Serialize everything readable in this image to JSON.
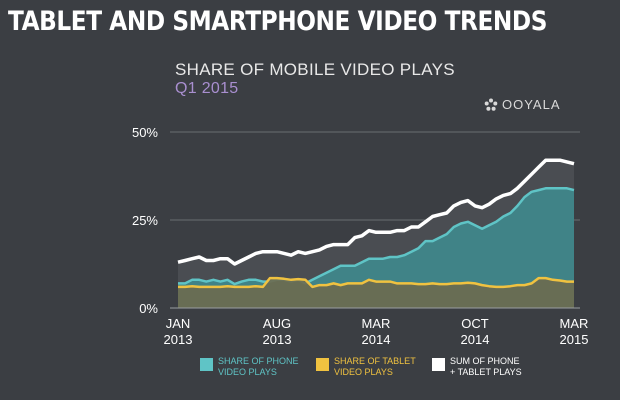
{
  "header": {
    "title": "TABLET AND SMARTPHONE VIDEO TRENDS",
    "subtitle": "SHARE OF MOBILE VIDEO PLAYS",
    "period": "Q1 2015",
    "brand": "OOYALA"
  },
  "colors": {
    "background": "#3b3e43",
    "phone": "#5fc4c6",
    "tablet": "#f0c240",
    "sum": "#ffffff",
    "period_text": "#a98fd0"
  },
  "legend": [
    {
      "label": "SHARE OF PHONE\nVIDEO PLAYS",
      "color": "#5fc4c6",
      "text_color": "#5fc4c6"
    },
    {
      "label": "SHARE OF TABLET\nVIDEO PLAYS",
      "color": "#f0c240",
      "text_color": "#f0c240"
    },
    {
      "label": "SUM OF PHONE\n+ TABLET PLAYS",
      "color": "#ffffff",
      "text_color": "#ffffff"
    }
  ],
  "chart_data": {
    "type": "area",
    "title": "SHARE OF MOBILE VIDEO PLAYS",
    "x_ticks": [
      {
        "index": 0,
        "label": [
          "JAN",
          "2013"
        ]
      },
      {
        "index": 14,
        "label": [
          "AUG",
          "2013"
        ]
      },
      {
        "index": 28,
        "label": [
          "MAR",
          "2014"
        ]
      },
      {
        "index": 42,
        "label": [
          "OCT",
          "2014"
        ]
      },
      {
        "index": 56,
        "label": [
          "MAR",
          "2015"
        ]
      }
    ],
    "y_ticks": [
      {
        "value": 0,
        "label": "0%"
      },
      {
        "value": 25,
        "label": "25%"
      },
      {
        "value": 50,
        "label": "50%"
      }
    ],
    "ylim": [
      0,
      50
    ],
    "x_count": 57,
    "series": [
      {
        "name": "SHARE OF PHONE VIDEO PLAYS",
        "values": [
          7,
          7,
          8,
          8,
          7.5,
          8,
          7.5,
          8,
          6.8,
          7.5,
          8,
          8,
          7.5,
          7.5,
          8,
          8,
          7.5,
          8,
          7,
          8,
          9,
          10,
          11,
          12,
          12,
          12,
          13,
          14,
          14,
          14,
          14.5,
          14.5,
          15,
          16,
          17,
          19,
          19,
          20,
          21,
          23,
          24,
          24.5,
          23.5,
          22.5,
          23.5,
          24.5,
          26,
          27,
          29,
          31.5,
          33,
          33.5,
          34,
          34,
          34,
          34,
          33.5
        ]
      },
      {
        "name": "SHARE OF TABLET VIDEO PLAYS",
        "values": [
          6,
          6,
          6.2,
          6,
          6,
          6,
          6,
          6.2,
          6,
          6,
          6,
          6.2,
          6,
          8.5,
          8.5,
          8.3,
          8,
          8.2,
          8,
          6,
          6.5,
          6.5,
          7,
          6.5,
          7,
          7,
          7,
          8,
          7.5,
          7.5,
          7.5,
          7,
          7,
          7,
          6.8,
          6.8,
          7,
          6.8,
          6.8,
          7,
          7,
          7.2,
          7,
          6.5,
          6.2,
          6,
          6,
          6.2,
          6.5,
          6.5,
          7,
          8.5,
          8.5,
          8,
          7.8,
          7.5,
          7.5
        ]
      },
      {
        "name": "SUM OF PHONE + TABLET PLAYS",
        "values": [
          13,
          13.5,
          14,
          14.5,
          13.5,
          13.5,
          14,
          14,
          12.5,
          13.5,
          14.5,
          15.5,
          16,
          16,
          16,
          15.5,
          15,
          16,
          15.5,
          16,
          16.5,
          17.5,
          18,
          18,
          18,
          20,
          20.5,
          22,
          21.5,
          21.5,
          21.5,
          22,
          22,
          23,
          23,
          24.5,
          26,
          26.5,
          27,
          29,
          30,
          30.5,
          29,
          28.5,
          29.5,
          31,
          32,
          32.5,
          34,
          36,
          38,
          40,
          42,
          42,
          42,
          41.5,
          41
        ]
      }
    ]
  }
}
